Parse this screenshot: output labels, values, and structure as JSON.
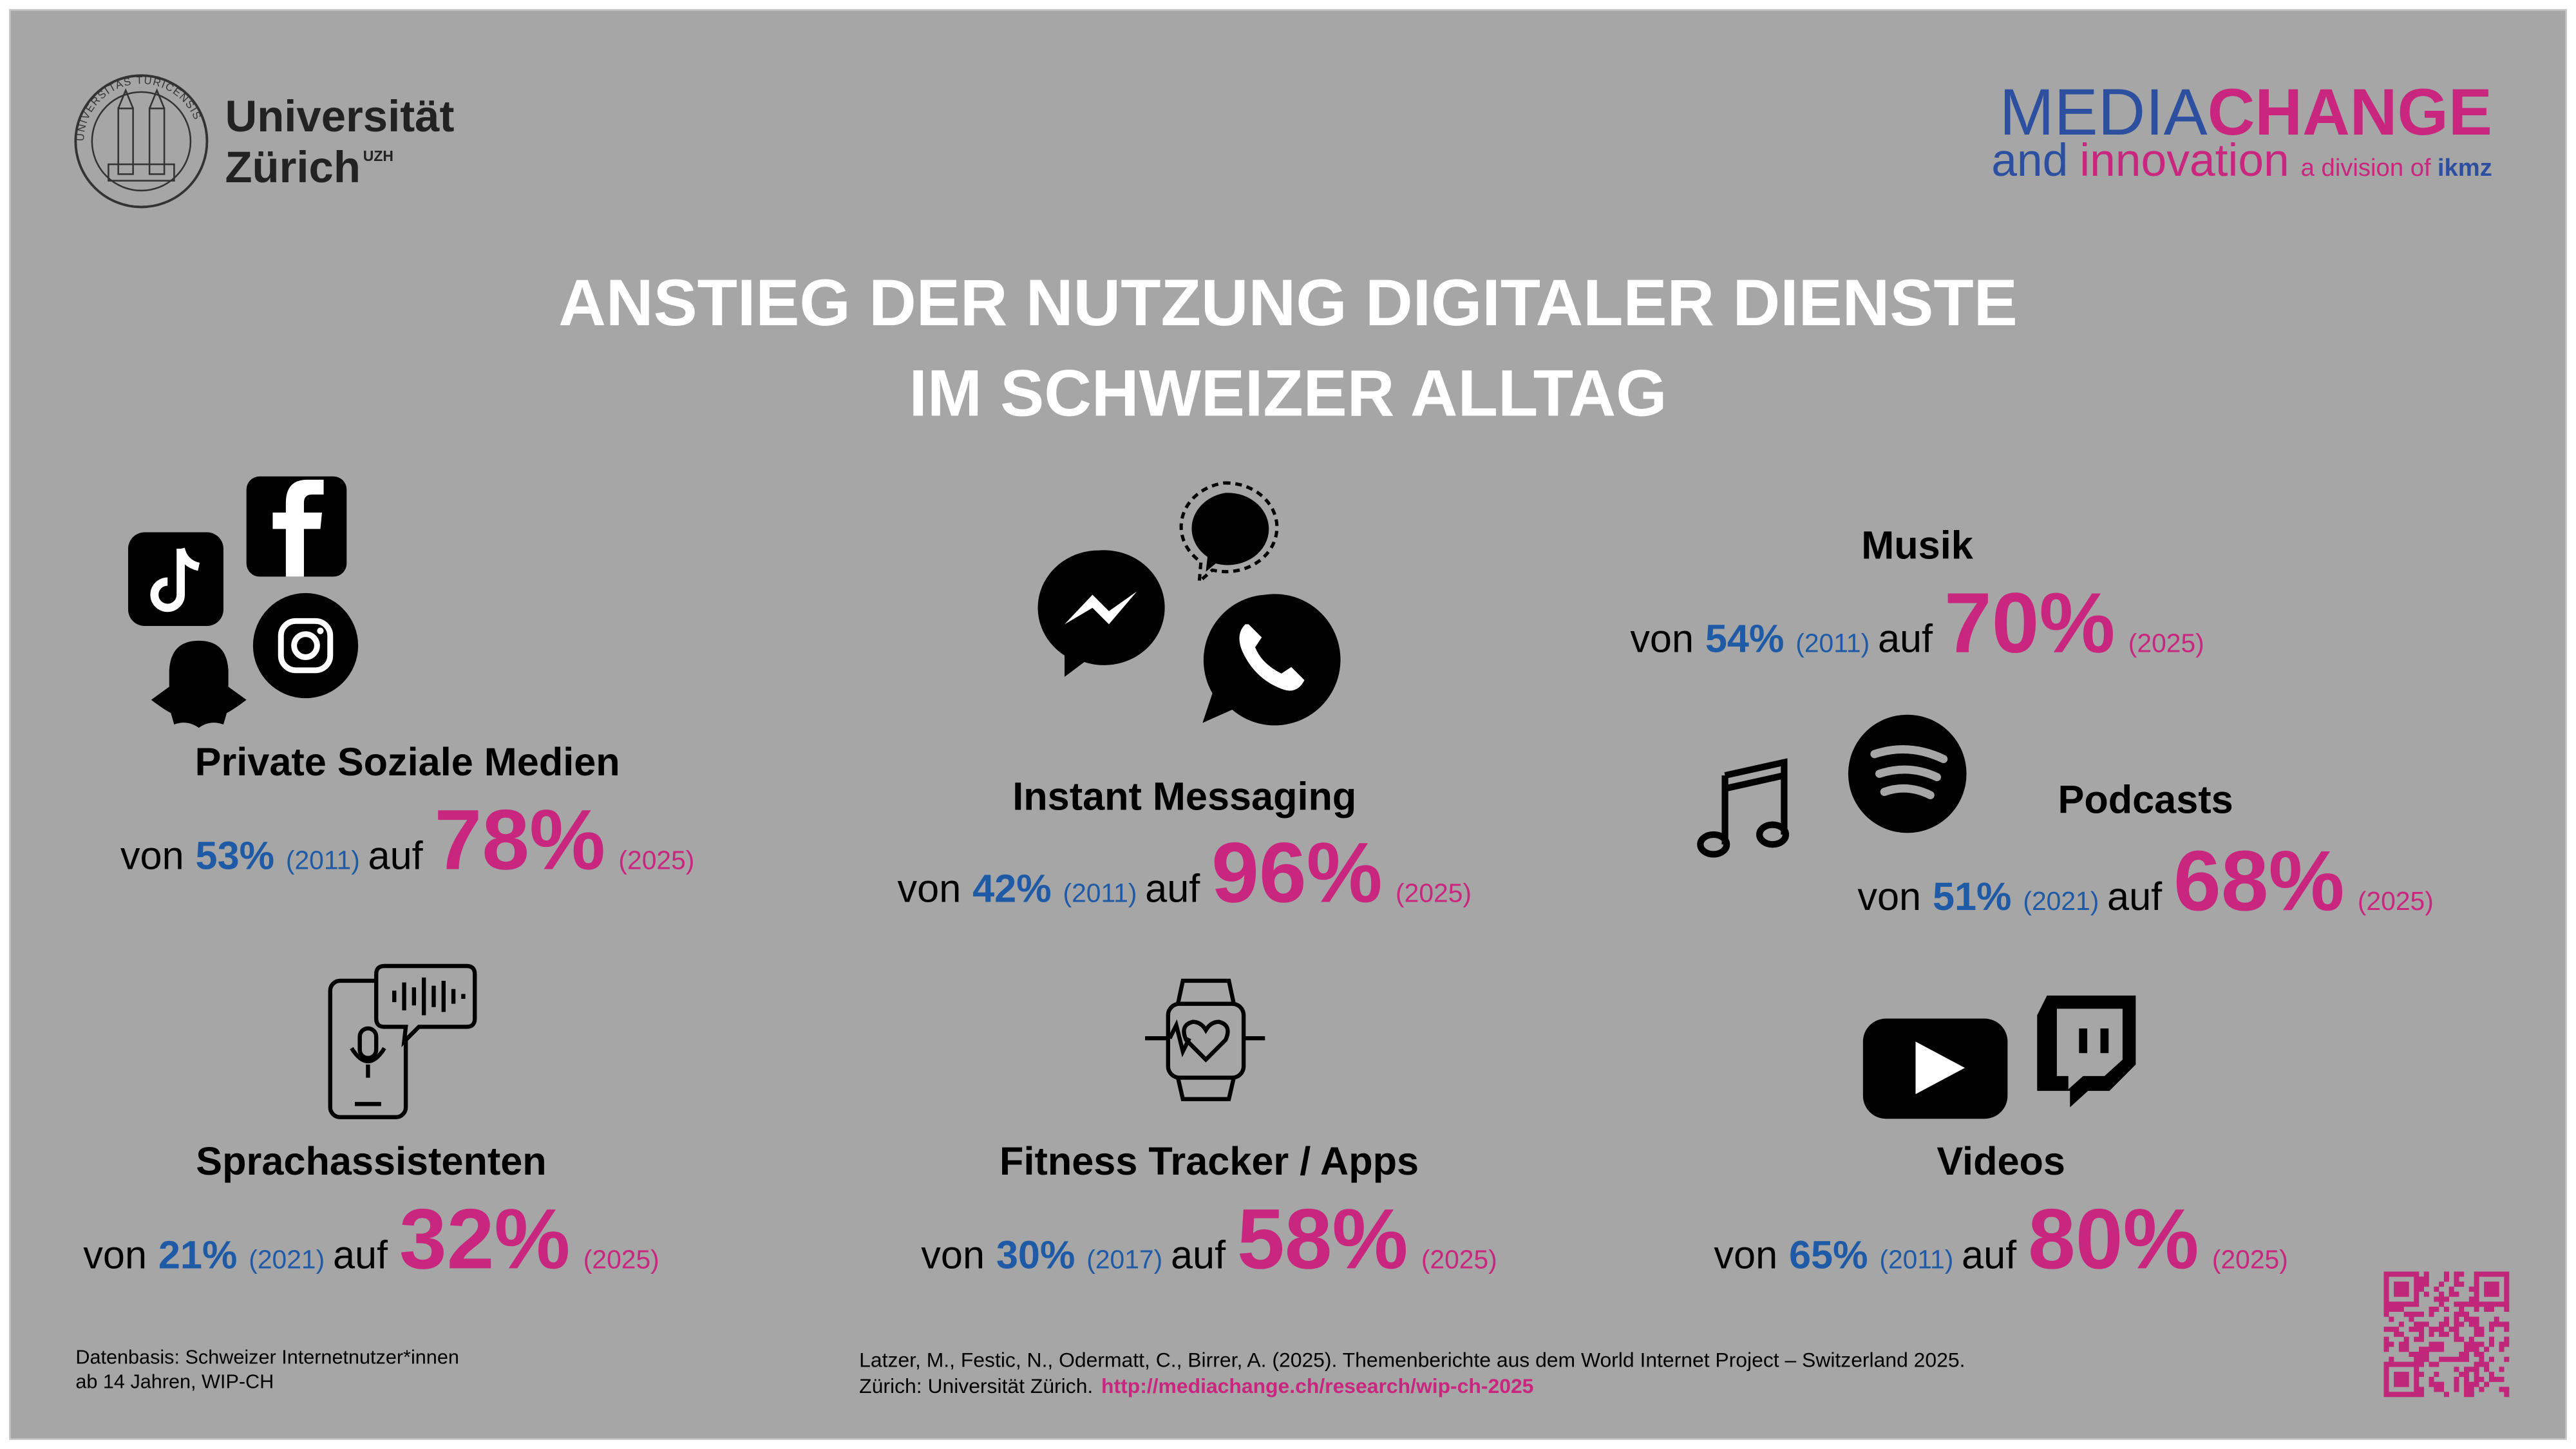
{
  "header": {
    "university": [
      "Universität",
      "Zürich"
    ],
    "uzh": "UZH",
    "seal": "UNIVERSITAS TURICENSIS",
    "brand": {
      "media": "MEDIA",
      "change": "CHANGE",
      "and": "and",
      "innovation": "innovation",
      "division": "a division of",
      "ikmz": "ikmz"
    }
  },
  "title": [
    "ANSTIEG DER NUTZUNG DIGITALER DIENSTE",
    "IM SCHWEIZER ALLTAG"
  ],
  "items": [
    {
      "title": "Private Soziale Medien",
      "from": "von",
      "from_value": "53%",
      "from_year": "(2011)",
      "to": "auf",
      "to_value": "78%",
      "to_year": "(2025)"
    },
    {
      "title": "Instant Messaging",
      "from": "von",
      "from_value": "42%",
      "from_year": "(2011)",
      "to": "auf",
      "to_value": "96%",
      "to_year": "(2025)"
    },
    {
      "title": "Musik",
      "from": "von",
      "from_value": "54%",
      "from_year": "(2011)",
      "to": "auf",
      "to_value": "70%",
      "to_year": "(2025)"
    },
    {
      "title": "Podcasts",
      "from": "von",
      "from_value": "51%",
      "from_year": "(2021)",
      "to": "auf",
      "to_value": "68%",
      "to_year": "(2025)"
    },
    {
      "title": "Sprachassistenten",
      "from": "von",
      "from_value": "21%",
      "from_year": "(2021)",
      "to": "auf",
      "to_value": "32%",
      "to_year": "(2025)"
    },
    {
      "title": "Fitness Tracker / Apps",
      "from": "von",
      "from_value": "30%",
      "from_year": "(2017)",
      "to": "auf",
      "to_value": "58%",
      "to_year": "(2025)"
    },
    {
      "title": "Videos",
      "from": "von",
      "from_value": "65%",
      "from_year": "(2011)",
      "to": "auf",
      "to_value": "80%",
      "to_year": "(2025)"
    }
  ],
  "footer": {
    "source": [
      "Datenbasis: Schweizer Internetnutzer*innen",
      "ab 14 Jahren, WIP-CH"
    ],
    "citation": [
      "Latzer, M., Festic, N., Odermatt, C., Birrer, A. (2025). Themenberichte aus dem World Internet Project – Switzerland 2025.",
      "Zürich: Universität Zürich."
    ],
    "url": "http://mediachange.ch/research/wip-ch-2025"
  }
}
